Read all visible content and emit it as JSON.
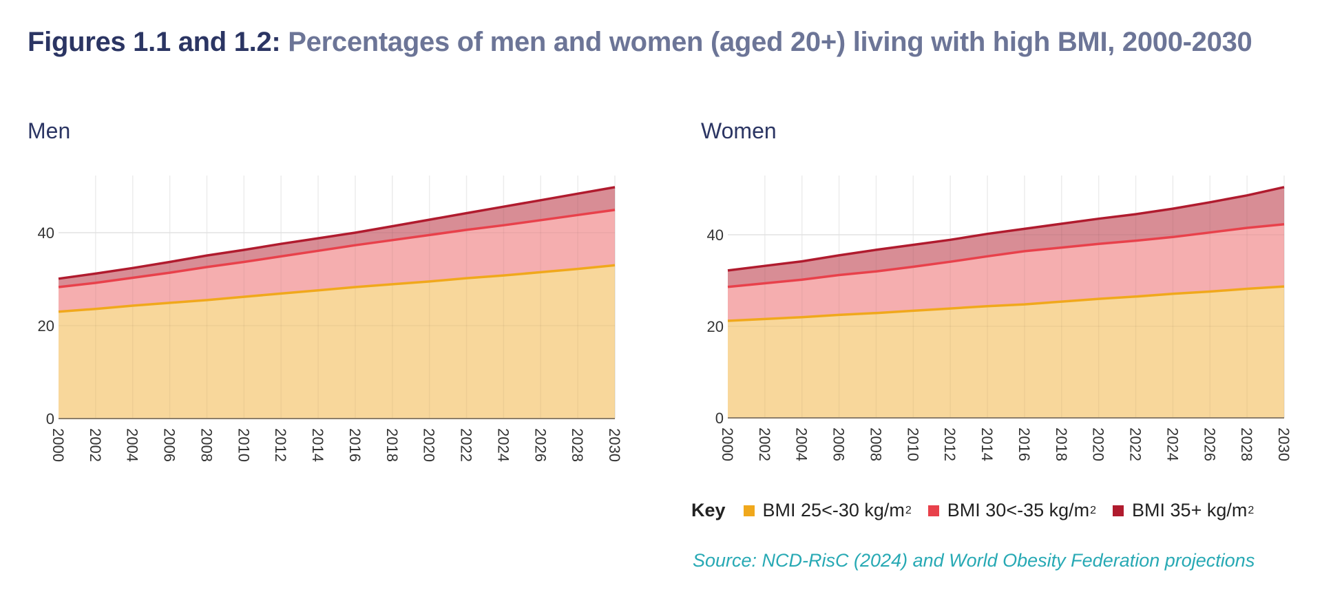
{
  "title": {
    "lead": "Figures 1.1 and 1.2:",
    "rest": " Percentages of men and women (aged 20+) living with high BMI, 2000-2030"
  },
  "legend": {
    "key_label": "Key",
    "items": [
      {
        "label": "BMI 25<-30 kg/m",
        "sup": "2",
        "color": "#f0a81c"
      },
      {
        "label": "BMI 30<-35 kg/m",
        "sup": "2",
        "color": "#e8414b"
      },
      {
        "label": "BMI 35+ kg/m",
        "sup": "2",
        "color": "#b01b2e"
      }
    ]
  },
  "source": "Source: NCD-RisC (2024) and World Obesity Federation projections",
  "chart_data": [
    {
      "type": "area",
      "stacked": true,
      "title": "Men",
      "xlabel": "",
      "ylabel": "",
      "xlim": [
        2000,
        2030
      ],
      "ylim": [
        0,
        52
      ],
      "yticks": [
        0,
        20,
        40
      ],
      "x": [
        2000,
        2002,
        2004,
        2006,
        2008,
        2010,
        2012,
        2014,
        2016,
        2018,
        2020,
        2022,
        2024,
        2026,
        2028,
        2030
      ],
      "xtick_labels": [
        "2000",
        "2002",
        "2004",
        "2006",
        "2008",
        "2010",
        "2012",
        "2014",
        "2016",
        "2018",
        "2020",
        "2022",
        "2024",
        "2026",
        "2028",
        "2030"
      ],
      "grid": true,
      "series": [
        {
          "name": "BMI 25<-30 kg/m2",
          "color": "#f0a81c",
          "fill": "#f8d596",
          "values": [
            23.0,
            23.6,
            24.3,
            24.9,
            25.5,
            26.2,
            26.9,
            27.6,
            28.3,
            28.9,
            29.5,
            30.2,
            30.8,
            31.5,
            32.2,
            33.0
          ]
        },
        {
          "name": "BMI 30<-35 kg/m2",
          "color": "#e8414b",
          "fill": "#f4aaab",
          "values": [
            5.3,
            5.6,
            6.0,
            6.5,
            7.1,
            7.5,
            8.0,
            8.5,
            9.0,
            9.5,
            10.0,
            10.4,
            10.8,
            11.2,
            11.6,
            11.9
          ]
        },
        {
          "name": "BMI 35+ kg/m2",
          "color": "#b01b2e",
          "fill": "#d6878f",
          "values": [
            1.8,
            2.0,
            2.1,
            2.3,
            2.5,
            2.6,
            2.7,
            2.7,
            2.7,
            3.0,
            3.3,
            3.6,
            4.0,
            4.3,
            4.6,
            4.9
          ]
        }
      ]
    },
    {
      "type": "area",
      "stacked": true,
      "title": "Women",
      "xlabel": "",
      "ylabel": "",
      "xlim": [
        2000,
        2030
      ],
      "ylim": [
        0,
        52
      ],
      "yticks": [
        0,
        20,
        40
      ],
      "x": [
        2000,
        2002,
        2004,
        2006,
        2008,
        2010,
        2012,
        2014,
        2016,
        2018,
        2020,
        2022,
        2024,
        2026,
        2028,
        2030
      ],
      "xtick_labels": [
        "2000",
        "2002",
        "2004",
        "2006",
        "2008",
        "2010",
        "2012",
        "2014",
        "2016",
        "2018",
        "2020",
        "2022",
        "2024",
        "2026",
        "2028",
        "2030"
      ],
      "grid": true,
      "series": [
        {
          "name": "BMI 25<-30 kg/m2",
          "color": "#f0a81c",
          "fill": "#f8d596",
          "values": [
            21.2,
            21.6,
            22.0,
            22.5,
            22.9,
            23.4,
            23.9,
            24.4,
            24.8,
            25.4,
            26.0,
            26.5,
            27.1,
            27.6,
            28.2,
            28.7
          ]
        },
        {
          "name": "BMI 30<-35 kg/m2",
          "color": "#e8414b",
          "fill": "#f4aaab",
          "values": [
            7.4,
            7.8,
            8.2,
            8.7,
            9.1,
            9.6,
            10.2,
            10.9,
            11.6,
            11.8,
            12.0,
            12.2,
            12.4,
            12.9,
            13.3,
            13.6
          ]
        },
        {
          "name": "BMI 35+ kg/m2",
          "color": "#b01b2e",
          "fill": "#d6878f",
          "values": [
            3.6,
            3.8,
            4.0,
            4.3,
            4.7,
            4.8,
            4.8,
            4.9,
            4.9,
            5.2,
            5.5,
            5.8,
            6.2,
            6.6,
            7.1,
            8.1
          ]
        }
      ]
    }
  ]
}
